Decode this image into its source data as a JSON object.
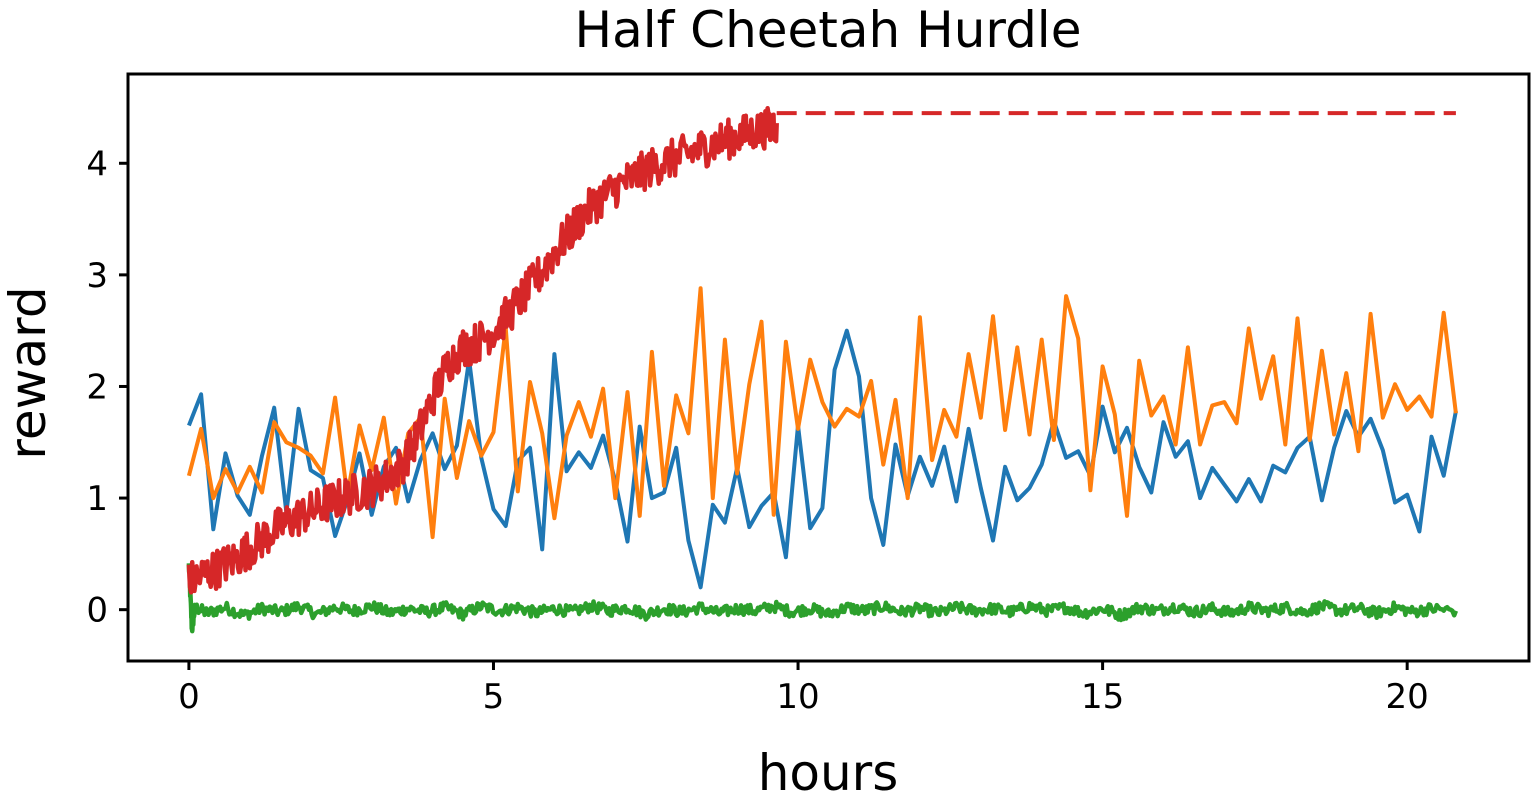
{
  "chart_data": {
    "type": "line",
    "title": "Half Cheetah Hurdle",
    "xlabel": "hours",
    "ylabel": "reward",
    "xlim": [
      -1,
      22
    ],
    "ylim": [
      -0.46,
      4.8
    ],
    "xticks": [
      0,
      5,
      10,
      15,
      20
    ],
    "yticks": [
      0,
      1,
      2,
      3,
      4
    ],
    "grid": false,
    "legend": "none",
    "series": [
      {
        "color": "#1f77b4",
        "x": [
          0,
          0.2,
          0.4,
          0.6,
          0.8,
          1.0,
          1.2,
          1.4,
          1.6,
          1.8,
          2.0,
          2.2,
          2.4,
          2.6,
          2.8,
          3.0,
          3.2,
          3.4,
          3.6,
          3.8,
          4.0,
          4.2,
          4.4,
          4.6,
          4.8,
          5.0,
          5.2,
          5.4,
          5.6,
          5.8,
          6.0,
          6.2,
          6.4,
          6.6,
          6.8,
          7.0,
          7.2,
          7.4,
          7.6,
          7.8,
          8.0,
          8.2,
          8.4,
          8.6,
          8.8,
          9.0,
          9.2,
          9.4,
          9.6,
          9.8,
          10.0,
          10.2,
          10.4,
          10.6,
          10.8,
          11.0,
          11.2,
          11.4,
          11.6,
          11.8,
          12.0,
          12.2,
          12.4,
          12.6,
          12.8,
          13.0,
          13.2,
          13.4,
          13.6,
          13.8,
          14.0,
          14.2,
          14.4,
          14.6,
          14.8,
          15.0,
          15.2,
          15.4,
          15.6,
          15.8,
          16.0,
          16.2,
          16.4,
          16.6,
          16.8,
          17.0,
          17.2,
          17.4,
          17.6,
          17.8,
          18.0,
          18.2,
          18.4,
          18.6,
          18.8,
          19.0,
          19.2,
          19.4,
          19.6,
          19.8,
          20.0,
          20.2,
          20.4,
          20.6,
          20.8
        ],
        "values": [
          1.65,
          1.93,
          0.72,
          1.4,
          1.02,
          0.85,
          1.38,
          1.81,
          0.87,
          1.8,
          1.25,
          1.18,
          0.66,
          0.98,
          1.4,
          0.85,
          1.28,
          1.45,
          0.97,
          1.34,
          1.58,
          1.26,
          1.47,
          2.24,
          1.36,
          0.9,
          0.75,
          1.33,
          1.45,
          0.54,
          2.29,
          1.24,
          1.41,
          1.27,
          1.56,
          1.15,
          0.61,
          1.64,
          1.0,
          1.05,
          1.45,
          0.62,
          0.2,
          0.94,
          0.78,
          1.27,
          0.74,
          0.93,
          1.05,
          0.47,
          1.65,
          0.73,
          0.91,
          2.15,
          2.5,
          2.09,
          1.0,
          0.58,
          1.48,
          1.02,
          1.37,
          1.11,
          1.46,
          0.97,
          1.62,
          1.09,
          0.62,
          1.28,
          0.98,
          1.09,
          1.3,
          1.69,
          1.36,
          1.42,
          1.2,
          1.82,
          1.41,
          1.63,
          1.28,
          1.05,
          1.68,
          1.37,
          1.51,
          1.0,
          1.27,
          1.12,
          0.97,
          1.17,
          0.97,
          1.29,
          1.23,
          1.45,
          1.55,
          0.98,
          1.45,
          1.78,
          1.55,
          1.71,
          1.43,
          0.96,
          1.03,
          0.7,
          1.55,
          1.2,
          1.78
        ],
        "style": "solid"
      },
      {
        "color": "#ff7f0e",
        "x": [
          0,
          0.2,
          0.4,
          0.6,
          0.8,
          1.0,
          1.2,
          1.4,
          1.6,
          1.8,
          2.0,
          2.2,
          2.4,
          2.6,
          2.8,
          3.0,
          3.2,
          3.4,
          3.6,
          3.8,
          4.0,
          4.2,
          4.4,
          4.6,
          4.8,
          5.0,
          5.2,
          5.4,
          5.6,
          5.8,
          6.0,
          6.2,
          6.4,
          6.6,
          6.8,
          7.0,
          7.2,
          7.4,
          7.6,
          7.8,
          8.0,
          8.2,
          8.4,
          8.6,
          8.8,
          9.0,
          9.2,
          9.4,
          9.6,
          9.8,
          10.0,
          10.2,
          10.4,
          10.6,
          10.8,
          11.0,
          11.2,
          11.4,
          11.6,
          11.8,
          12.0,
          12.2,
          12.4,
          12.6,
          12.8,
          13.0,
          13.2,
          13.4,
          13.6,
          13.8,
          14.0,
          14.2,
          14.4,
          14.6,
          14.8,
          15.0,
          15.2,
          15.4,
          15.6,
          15.8,
          16.0,
          16.2,
          16.4,
          16.6,
          16.8,
          17.0,
          17.2,
          17.4,
          17.6,
          17.8,
          18.0,
          18.2,
          18.4,
          18.6,
          18.8,
          19.0,
          19.2,
          19.4,
          19.6,
          19.8,
          20.0,
          20.2,
          20.4,
          20.6,
          20.8
        ],
        "values": [
          1.2,
          1.62,
          1.0,
          1.26,
          1.05,
          1.28,
          1.05,
          1.68,
          1.5,
          1.45,
          1.38,
          1.22,
          1.9,
          1.02,
          1.65,
          1.25,
          1.72,
          0.95,
          1.58,
          1.72,
          0.65,
          1.89,
          1.18,
          1.69,
          1.38,
          1.59,
          2.53,
          1.06,
          2.04,
          1.58,
          0.82,
          1.56,
          1.86,
          1.55,
          1.98,
          1.0,
          1.95,
          0.84,
          2.31,
          1.11,
          1.92,
          1.58,
          2.88,
          1.0,
          2.42,
          1.22,
          2.02,
          2.58,
          0.85,
          2.4,
          1.62,
          2.24,
          1.86,
          1.64,
          1.8,
          1.73,
          2.05,
          1.3,
          1.88,
          1.0,
          2.62,
          1.34,
          1.79,
          1.55,
          2.29,
          1.72,
          2.63,
          1.61,
          2.35,
          1.57,
          2.42,
          1.52,
          2.81,
          2.43,
          1.07,
          2.18,
          1.75,
          0.84,
          2.23,
          1.74,
          1.91,
          1.48,
          2.35,
          1.48,
          1.83,
          1.86,
          1.67,
          2.52,
          1.89,
          2.27,
          1.48,
          2.61,
          1.52,
          2.32,
          1.57,
          2.12,
          1.42,
          2.65,
          1.72,
          2.02,
          1.79,
          1.91,
          1.73,
          2.66,
          1.76
        ],
        "style": "solid"
      },
      {
        "color": "#2ca02c",
        "x": [
          0,
          0.05,
          0.1,
          0.3,
          0.6,
          0.9,
          1.2,
          1.5,
          1.8,
          2.1,
          2.4,
          2.7,
          3.0,
          3.3,
          3.6,
          3.9,
          4.2,
          4.5,
          4.8,
          5.1,
          5.4,
          5.7,
          6.0,
          6.3,
          6.6,
          6.9,
          7.2,
          7.5,
          7.8,
          8.1,
          8.4,
          8.7,
          9.0,
          9.3,
          9.6,
          9.9,
          10.2,
          10.5,
          10.8,
          11.1,
          11.4,
          11.7,
          12.0,
          12.3,
          12.6,
          12.9,
          13.2,
          13.5,
          13.8,
          14.1,
          14.4,
          14.7,
          15.0,
          15.3,
          15.6,
          15.9,
          16.2,
          16.5,
          16.8,
          17.1,
          17.4,
          17.7,
          18.0,
          18.3,
          18.6,
          18.9,
          19.2,
          19.5,
          19.8,
          20.1,
          20.4,
          20.8
        ],
        "values": [
          0.4,
          -0.18,
          0.02,
          -0.03,
          0.02,
          -0.05,
          0.01,
          -0.02,
          0.03,
          -0.04,
          0.02,
          -0.01,
          0.03,
          -0.03,
          0.01,
          -0.02,
          0.02,
          -0.04,
          0.03,
          -0.01,
          0.02,
          -0.03,
          0.01,
          -0.02,
          0.03,
          -0.01,
          0.02,
          -0.04,
          0.01,
          -0.02,
          0.02,
          -0.03,
          0.01,
          -0.01,
          0.03,
          -0.02,
          0.01,
          -0.04,
          0.02,
          -0.01,
          0.03,
          -0.02,
          0.01,
          -0.03,
          0.02,
          -0.01,
          0.01,
          -0.02,
          0.03,
          -0.01,
          0.02,
          -0.03,
          0.01,
          -0.05,
          0.02,
          -0.01,
          0.03,
          -0.02,
          0.01,
          -0.03,
          0.02,
          -0.01,
          0.02,
          -0.02,
          0.03,
          -0.01,
          0.01,
          -0.03,
          0.02,
          -0.02,
          0.01,
          -0.01
        ],
        "style": "solid",
        "noise": 0.05
      },
      {
        "color": "#d62728",
        "x": [
          0,
          0.25,
          0.5,
          0.75,
          1.0,
          1.25,
          1.5,
          1.75,
          2.0,
          2.25,
          2.5,
          2.75,
          3.0,
          3.25,
          3.5,
          3.75,
          4.0,
          4.25,
          4.5,
          4.75,
          5.0,
          5.25,
          5.5,
          5.75,
          6.0,
          6.25,
          6.5,
          6.75,
          7.0,
          7.25,
          7.5,
          7.75,
          8.0,
          8.25,
          8.5,
          8.75,
          9.0,
          9.25,
          9.5,
          9.65
        ],
        "values": [
          0.25,
          0.32,
          0.38,
          0.45,
          0.55,
          0.65,
          0.75,
          0.82,
          0.88,
          0.95,
          1.0,
          1.05,
          1.1,
          1.18,
          1.3,
          1.55,
          1.9,
          2.2,
          2.35,
          2.4,
          2.5,
          2.65,
          2.82,
          3.0,
          3.2,
          3.38,
          3.55,
          3.68,
          3.78,
          3.86,
          3.94,
          4.0,
          4.05,
          4.1,
          4.15,
          4.2,
          4.24,
          4.28,
          4.32,
          4.36
        ],
        "style": "solid",
        "noise": 0.18
      },
      {
        "color": "#d62728",
        "x": [
          9.65,
          20.8
        ],
        "values": [
          4.45,
          4.45
        ],
        "style": "dashed"
      }
    ]
  }
}
